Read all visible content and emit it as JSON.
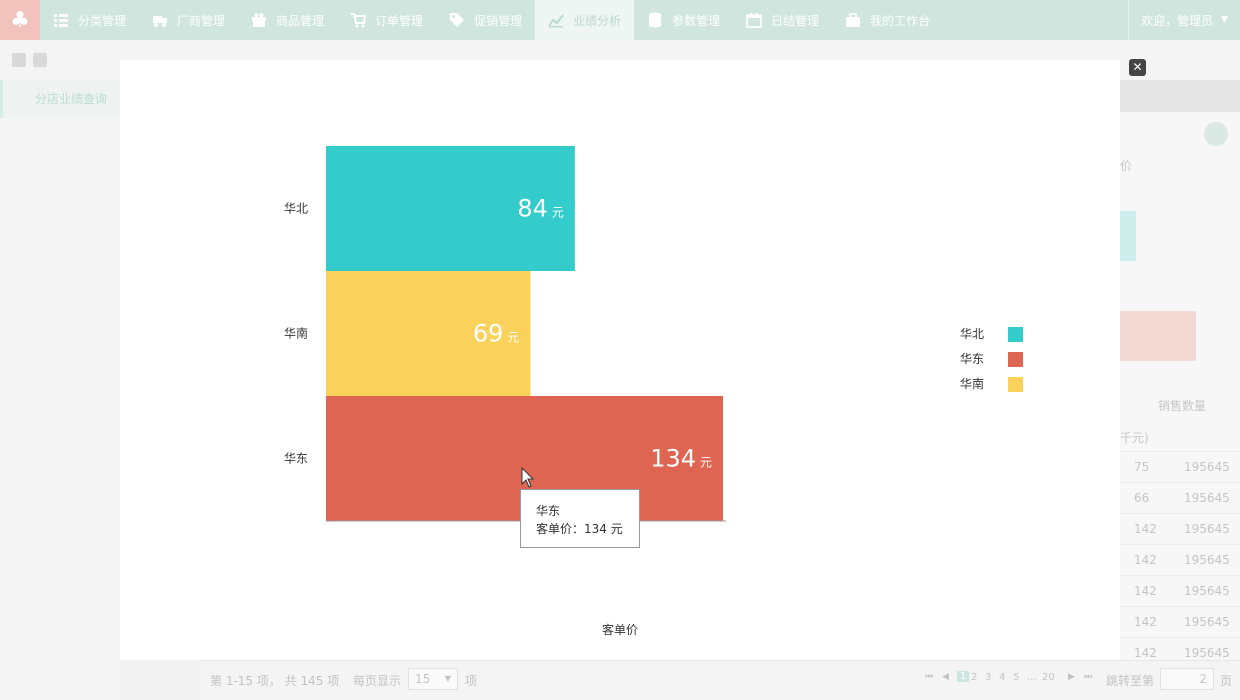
{
  "nav": {
    "logo_glyph": "♣",
    "items": [
      {
        "label": "分类管理",
        "icon": "list-icon"
      },
      {
        "label": "厂商管理",
        "icon": "truck-icon"
      },
      {
        "label": "商品管理",
        "icon": "gift-icon"
      },
      {
        "label": "订单管理",
        "icon": "cart-icon"
      },
      {
        "label": "促销管理",
        "icon": "tag-icon"
      },
      {
        "label": "业绩分析",
        "icon": "chart-icon",
        "active": true
      },
      {
        "label": "参数管理",
        "icon": "database-icon"
      },
      {
        "label": "日结管理",
        "icon": "calendar-icon"
      },
      {
        "label": "我的工作台",
        "icon": "briefcase-icon"
      }
    ],
    "user_label": "欢迎，管理员",
    "caret": "▼"
  },
  "sidebar": {
    "item_label": "分店业绩查询"
  },
  "background_table": {
    "header_fragment": "价",
    "col_header_sales_qty": "销售数量",
    "unit_fragment": "千元)",
    "rows": [
      {
        "a": "75",
        "b": "195645"
      },
      {
        "a": "66",
        "b": "195645"
      },
      {
        "a": "142",
        "b": "195645"
      },
      {
        "a": "142",
        "b": "195645"
      },
      {
        "a": "142",
        "b": "195645"
      },
      {
        "a": "142",
        "b": "195645"
      },
      {
        "a": "142",
        "b": "195645"
      }
    ]
  },
  "pager": {
    "summary": "第 1-15 项， 共 145 项",
    "per_page_label": "每页显示",
    "per_page_value": "15",
    "per_page_unit": "项",
    "pages": [
      "1",
      "2",
      "3",
      "4",
      "5",
      "...",
      "20"
    ],
    "jump_label": "跳转至第",
    "jump_value": "2",
    "jump_unit": "页"
  },
  "modal": {
    "close_glyph": "✕"
  },
  "chart_data": {
    "type": "bar",
    "orientation": "horizontal",
    "categories": [
      "华北",
      "华南",
      "华东"
    ],
    "values": [
      84,
      69,
      134
    ],
    "value_unit": "元",
    "colors": [
      "#33ccca",
      "#f9d15b",
      "#de6551"
    ],
    "xlabel": "客单价",
    "xlim": [
      0,
      135
    ],
    "legend": {
      "placement": "right",
      "entries": [
        {
          "name": "华北",
          "color": "#33ccca"
        },
        {
          "name": "华东",
          "color": "#de6551"
        },
        {
          "name": "华南",
          "color": "#f9d15b"
        }
      ]
    },
    "tooltip": {
      "title": "华东",
      "line": "客单价：134 元"
    }
  }
}
